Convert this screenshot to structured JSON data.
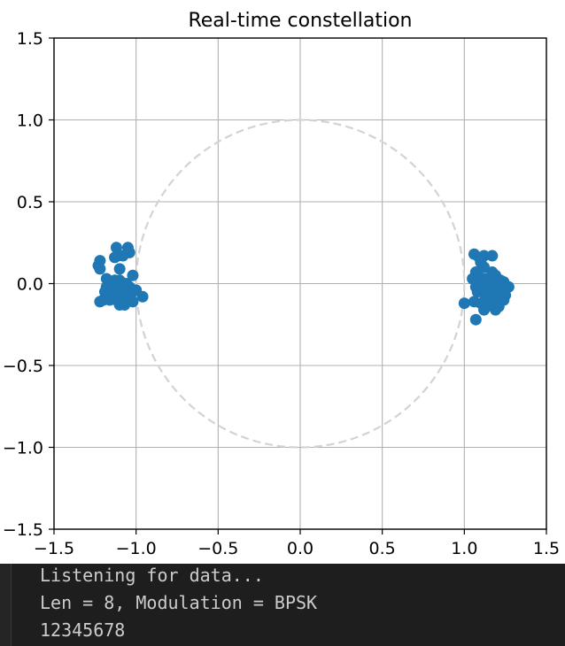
{
  "chart_data": {
    "type": "scatter",
    "title": "Real-time constellation",
    "xlabel": "",
    "ylabel": "",
    "xlim": [
      -1.5,
      1.5
    ],
    "ylim": [
      -1.5,
      1.5
    ],
    "xticks": [
      "−1.5",
      "−1.0",
      "−0.5",
      "0.0",
      "0.5",
      "1.0",
      "1.5"
    ],
    "yticks": [
      "1.5",
      "1.0",
      "0.5",
      "0.0",
      "−0.5",
      "−1.0",
      "−1.5"
    ],
    "xtick_values": [
      -1.5,
      -1.0,
      -0.5,
      0.0,
      0.5,
      1.0,
      1.5
    ],
    "ytick_values": [
      1.5,
      1.0,
      0.5,
      0.0,
      -0.5,
      -1.0,
      -1.5
    ],
    "grid": true,
    "reference_circle": {
      "radius": 1.0,
      "style": "dashed",
      "color": "#d3d3d3"
    },
    "marker_color": "#1f77b4",
    "series": [
      {
        "points": [
          [
            -1.12,
            0.22
          ],
          [
            -1.05,
            0.22
          ],
          [
            -1.04,
            0.19
          ],
          [
            -1.11,
            0.17
          ],
          [
            -1.08,
            0.17
          ],
          [
            -1.13,
            0.16
          ],
          [
            -1.22,
            0.14
          ],
          [
            -1.23,
            0.11
          ],
          [
            -1.22,
            0.09
          ],
          [
            -1.1,
            0.09
          ],
          [
            -1.18,
            0.03
          ],
          [
            -1.13,
            0.02
          ],
          [
            -1.1,
            0.02
          ],
          [
            -1.02,
            0.05
          ],
          [
            -1.06,
            0.0
          ],
          [
            -1.18,
            -0.02
          ],
          [
            -1.15,
            -0.02
          ],
          [
            -1.12,
            -0.03
          ],
          [
            -1.09,
            -0.03
          ],
          [
            -1.04,
            -0.02
          ],
          [
            -1.0,
            -0.04
          ],
          [
            -1.19,
            -0.05
          ],
          [
            -1.15,
            -0.05
          ],
          [
            -1.11,
            -0.06
          ],
          [
            -1.07,
            -0.04
          ],
          [
            -1.03,
            -0.06
          ],
          [
            -1.17,
            -0.08
          ],
          [
            -1.13,
            -0.08
          ],
          [
            -1.08,
            -0.08
          ],
          [
            -1.04,
            -0.08
          ],
          [
            -1.2,
            -0.1
          ],
          [
            -1.16,
            -0.1
          ],
          [
            -1.12,
            -0.1
          ],
          [
            -1.06,
            -0.1
          ],
          [
            -0.96,
            -0.08
          ],
          [
            -1.22,
            -0.11
          ],
          [
            -1.1,
            -0.13
          ],
          [
            -1.02,
            -0.11
          ],
          [
            -1.07,
            -0.13
          ]
        ]
      },
      {
        "points": [
          [
            1.06,
            0.18
          ],
          [
            1.09,
            0.16
          ],
          [
            1.12,
            0.17
          ],
          [
            1.17,
            0.17
          ],
          [
            1.1,
            0.13
          ],
          [
            1.12,
            0.1
          ],
          [
            1.07,
            0.07
          ],
          [
            1.17,
            0.07
          ],
          [
            1.19,
            0.05
          ],
          [
            1.05,
            0.03
          ],
          [
            1.09,
            0.04
          ],
          [
            1.13,
            0.03
          ],
          [
            1.16,
            0.02
          ],
          [
            1.22,
            0.02
          ],
          [
            1.24,
            0.01
          ],
          [
            1.27,
            -0.02
          ],
          [
            1.07,
            -0.02
          ],
          [
            1.11,
            -0.01
          ],
          [
            1.15,
            -0.02
          ],
          [
            1.19,
            -0.02
          ],
          [
            1.23,
            -0.04
          ],
          [
            1.08,
            -0.05
          ],
          [
            1.12,
            -0.05
          ],
          [
            1.17,
            -0.06
          ],
          [
            1.21,
            -0.06
          ],
          [
            1.25,
            -0.07
          ],
          [
            1.13,
            -0.08
          ],
          [
            1.19,
            -0.09
          ],
          [
            1.24,
            -0.1
          ],
          [
            1.06,
            -0.11
          ],
          [
            1.1,
            -0.12
          ],
          [
            1.15,
            -0.13
          ],
          [
            1.21,
            -0.14
          ],
          [
            1.0,
            -0.12
          ],
          [
            1.19,
            -0.16
          ],
          [
            1.12,
            -0.16
          ],
          [
            1.07,
            -0.22
          ]
        ]
      }
    ]
  },
  "terminal": {
    "lines": [
      "Listening for data...",
      "Len = 8, Modulation = BPSK",
      "12345678"
    ]
  }
}
